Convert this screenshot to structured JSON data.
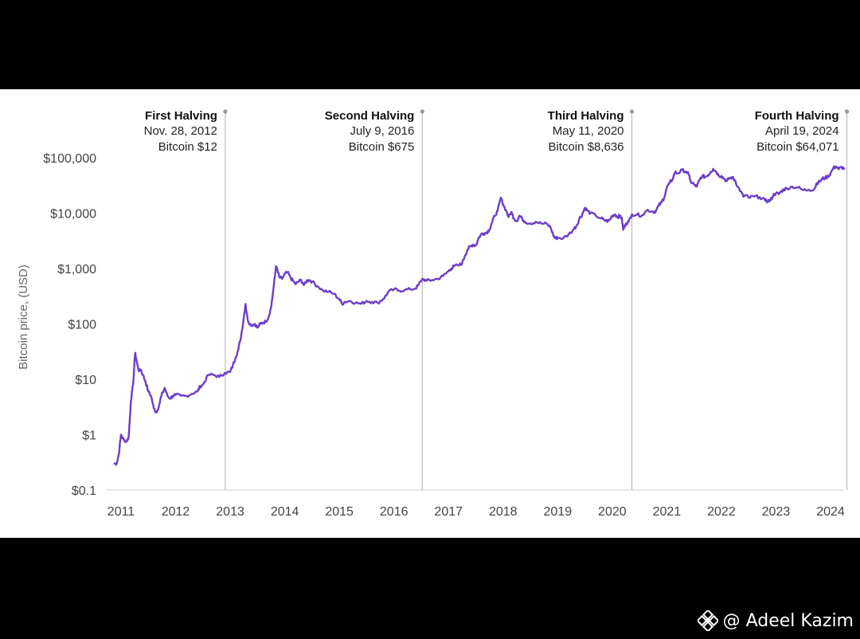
{
  "watermark": {
    "logo_icon": "binance-logo-icon",
    "text": "@ Adeel Kazim"
  },
  "chart_data": {
    "type": "line",
    "title": "",
    "xlabel": "",
    "ylabel": "Bitcoin price, (USD)",
    "yscale": "log",
    "ylim": [
      0.1,
      100000
    ],
    "xlim": [
      2010.8,
      2024.3
    ],
    "grid": false,
    "y_ticks": [
      {
        "value": 0.1,
        "label": "$0.1"
      },
      {
        "value": 1,
        "label": "$1"
      },
      {
        "value": 10,
        "label": "$10"
      },
      {
        "value": 100,
        "label": "$100"
      },
      {
        "value": 1000,
        "label": "$1,000"
      },
      {
        "value": 10000,
        "label": "$10,000"
      },
      {
        "value": 100000,
        "label": "$100,000"
      }
    ],
    "x_ticks": [
      {
        "value": 2011,
        "label": "2011"
      },
      {
        "value": 2012,
        "label": "2012"
      },
      {
        "value": 2013,
        "label": "2013"
      },
      {
        "value": 2014,
        "label": "2014"
      },
      {
        "value": 2015,
        "label": "2015"
      },
      {
        "value": 2016,
        "label": "2016"
      },
      {
        "value": 2017,
        "label": "2017"
      },
      {
        "value": 2018,
        "label": "2018"
      },
      {
        "value": 2019,
        "label": "2019"
      },
      {
        "value": 2020,
        "label": "2020"
      },
      {
        "value": 2021,
        "label": "2021"
      },
      {
        "value": 2022,
        "label": "2022"
      },
      {
        "value": 2023,
        "label": "2023"
      },
      {
        "value": 2024,
        "label": "2024"
      }
    ],
    "series": [
      {
        "color": "#6B3FC8",
        "x": [
          2010.88,
          2010.92,
          2010.96,
          2011.0,
          2011.05,
          2011.1,
          2011.14,
          2011.18,
          2011.22,
          2011.26,
          2011.3,
          2011.33,
          2011.36,
          2011.4,
          2011.45,
          2011.5,
          2011.55,
          2011.6,
          2011.65,
          2011.7,
          2011.74,
          2011.8,
          2011.85,
          2011.9,
          2011.95,
          2012.0,
          2012.1,
          2012.2,
          2012.3,
          2012.4,
          2012.45,
          2012.5,
          2012.6,
          2012.7,
          2012.8,
          2012.9,
          2013.0,
          2013.05,
          2013.1,
          2013.15,
          2013.2,
          2013.25,
          2013.28,
          2013.32,
          2013.36,
          2013.4,
          2013.45,
          2013.5,
          2013.55,
          2013.6,
          2013.65,
          2013.7,
          2013.75,
          2013.8,
          2013.84,
          2013.87,
          2013.9,
          2013.95,
          2014.0,
          2014.05,
          2014.1,
          2014.15,
          2014.2,
          2014.25,
          2014.3,
          2014.35,
          2014.4,
          2014.45,
          2014.5,
          2014.6,
          2014.7,
          2014.8,
          2014.9,
          2015.0,
          2015.05,
          2015.1,
          2015.2,
          2015.3,
          2015.4,
          2015.5,
          2015.6,
          2015.7,
          2015.8,
          2015.85,
          2015.9,
          2016.0,
          2016.1,
          2016.2,
          2016.3,
          2016.4,
          2016.45,
          2016.52,
          2016.6,
          2016.7,
          2016.8,
          2016.9,
          2017.0,
          2017.05,
          2017.1,
          2017.2,
          2017.25,
          2017.3,
          2017.35,
          2017.4,
          2017.45,
          2017.5,
          2017.55,
          2017.6,
          2017.65,
          2017.7,
          2017.75,
          2017.8,
          2017.85,
          2017.9,
          2017.96,
          2018.0,
          2018.05,
          2018.1,
          2018.15,
          2018.2,
          2018.25,
          2018.3,
          2018.35,
          2018.4,
          2018.5,
          2018.6,
          2018.7,
          2018.8,
          2018.87,
          2018.92,
          2018.96,
          2019.0,
          2019.1,
          2019.2,
          2019.3,
          2019.35,
          2019.4,
          2019.45,
          2019.5,
          2019.55,
          2019.6,
          2019.7,
          2019.8,
          2019.85,
          2019.9,
          2019.95,
          2020.0,
          2020.05,
          2020.1,
          2020.15,
          2020.18,
          2020.2,
          2020.25,
          2020.3,
          2020.36,
          2020.45,
          2020.55,
          2020.65,
          2020.75,
          2020.8,
          2020.85,
          2020.9,
          2020.95,
          2021.0,
          2021.05,
          2021.1,
          2021.15,
          2021.2,
          2021.28,
          2021.35,
          2021.4,
          2021.45,
          2021.5,
          2021.55,
          2021.6,
          2021.65,
          2021.7,
          2021.75,
          2021.8,
          2021.85,
          2021.9,
          2021.95,
          2022.0,
          2022.05,
          2022.1,
          2022.15,
          2022.2,
          2022.25,
          2022.3,
          2022.35,
          2022.4,
          2022.45,
          2022.5,
          2022.6,
          2022.7,
          2022.8,
          2022.85,
          2022.9,
          2022.95,
          2023.0,
          2023.05,
          2023.1,
          2023.15,
          2023.2,
          2023.3,
          2023.4,
          2023.5,
          2023.6,
          2023.7,
          2023.75,
          2023.8,
          2023.85,
          2023.9,
          2023.95,
          2024.0,
          2024.05,
          2024.1,
          2024.15,
          2024.2,
          2024.25
        ],
        "y": [
          0.3,
          0.3,
          0.45,
          1.0,
          0.8,
          0.75,
          0.9,
          4,
          8,
          30,
          18,
          14,
          15,
          12,
          9,
          6,
          5,
          3,
          2.5,
          3.5,
          5,
          7,
          5,
          4.5,
          5,
          5.2,
          5,
          5,
          5.5,
          6,
          7.5,
          8,
          12,
          12,
          11,
          13,
          13.5,
          18,
          25,
          35,
          60,
          130,
          230,
          120,
          100,
          95,
          100,
          85,
          100,
          105,
          110,
          130,
          200,
          500,
          1100,
          900,
          700,
          650,
          800,
          850,
          700,
          600,
          520,
          580,
          620,
          500,
          600,
          620,
          580,
          480,
          400,
          380,
          350,
          280,
          230,
          250,
          260,
          240,
          230,
          260,
          250,
          240,
          280,
          320,
          380,
          420,
          400,
          410,
          420,
          440,
          500,
          650,
          600,
          620,
          650,
          730,
          900,
          1000,
          1100,
          1150,
          1250,
          1700,
          2200,
          2500,
          2700,
          2600,
          3500,
          4200,
          4300,
          4500,
          5000,
          7000,
          9000,
          11000,
          19000,
          14500,
          11500,
          8500,
          10500,
          8000,
          7200,
          9000,
          8000,
          7000,
          6500,
          7000,
          6500,
          6400,
          5500,
          4000,
          3500,
          3600,
          3500,
          4100,
          5200,
          6000,
          8000,
          9500,
          12500,
          11000,
          10000,
          9000,
          8000,
          7500,
          7200,
          7400,
          9000,
          9500,
          8500,
          9000,
          7500,
          5000,
          6500,
          7000,
          9500,
          9300,
          9200,
          11500,
          10500,
          11000,
          13500,
          15500,
          19000,
          29000,
          35000,
          40000,
          55000,
          52000,
          60000,
          56000,
          50000,
          35000,
          33000,
          30000,
          40000,
          47000,
          45000,
          48000,
          55000,
          63000,
          57000,
          48000,
          47000,
          42000,
          38000,
          43000,
          44000,
          39000,
          30000,
          25000,
          20000,
          21000,
          19000,
          20000,
          19500,
          17000,
          16500,
          17000,
          21000,
          23000,
          22000,
          25000,
          27000,
          28000,
          30000,
          29000,
          26000,
          26500,
          27000,
          35000,
          37000,
          42000,
          43000,
          46000,
          52000,
          65000,
          70000,
          62000,
          68000,
          64000
        ]
      }
    ],
    "halvings": [
      {
        "x": 2012.91,
        "title": "First Halving",
        "date": "Nov. 28, 2012",
        "price": "Bitcoin $12"
      },
      {
        "x": 2016.52,
        "title": "Second Halving",
        "date": "July 9, 2016",
        "price": "Bitcoin $675"
      },
      {
        "x": 2020.36,
        "title": "Third Halving",
        "date": "May 11, 2020",
        "price": "Bitcoin $8,636"
      },
      {
        "x": 2024.3,
        "title": "Fourth Halving",
        "date": "April 19, 2024",
        "price": "Bitcoin $64,071"
      }
    ]
  }
}
